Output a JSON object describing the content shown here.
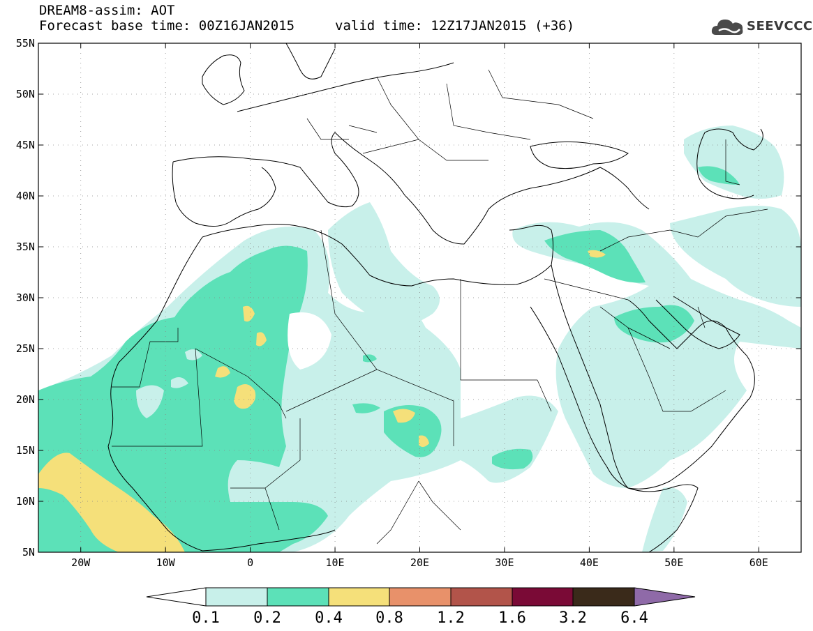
{
  "header": {
    "title": "DREAM8-assim: AOT",
    "base_time": "Forecast base time: 00Z16JAN2015",
    "valid_time": "valid time: 12Z17JAN2015 (+36)",
    "logo_text": "SEEVCCC"
  },
  "map": {
    "lon_range": [
      -25,
      65
    ],
    "lat_range": [
      5,
      55
    ],
    "lat_ticks": [
      "55N",
      "50N",
      "45N",
      "40N",
      "35N",
      "30N",
      "25N",
      "20N",
      "15N",
      "10N",
      "5N"
    ],
    "lon_ticks": [
      "20W",
      "10W",
      "0",
      "10E",
      "20E",
      "30E",
      "40E",
      "50E",
      "60E"
    ],
    "variable": "AOT",
    "max_level_shown": "0.4-0.8"
  },
  "colorbar": {
    "labels": [
      "0.1",
      "0.2",
      "0.4",
      "0.8",
      "1.2",
      "1.6",
      "3.2",
      "6.4"
    ],
    "colors": [
      "#ffffff",
      "#c8f0ea",
      "#5ce1b8",
      "#f5e07a",
      "#e8916a",
      "#b2544a",
      "#7a0a36",
      "#3a2a1a",
      "#8f6aa8"
    ]
  }
}
